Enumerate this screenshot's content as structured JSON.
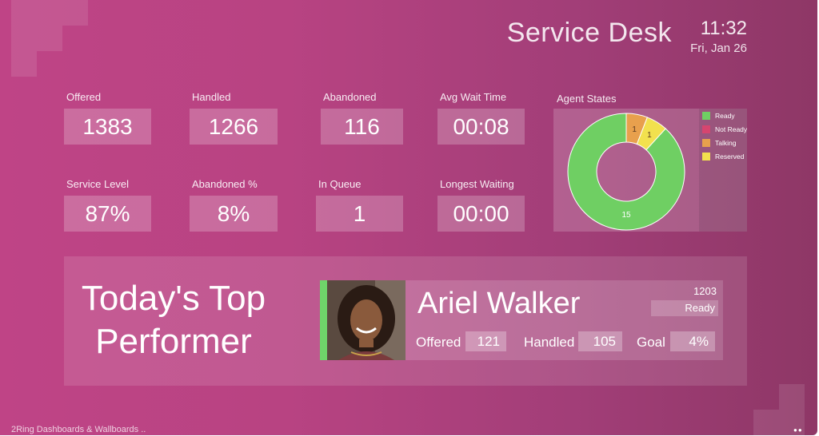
{
  "header": {
    "title": "Service Desk",
    "time": "11:32",
    "date": "Fri, Jan 26"
  },
  "metrics": [
    {
      "label": "Offered",
      "value": "1383"
    },
    {
      "label": "Handled",
      "value": "1266"
    },
    {
      "label": "Abandoned",
      "value": "116"
    },
    {
      "label": "Avg Wait Time",
      "value": "00:08"
    },
    {
      "label": "Service Level",
      "value": "87%"
    },
    {
      "label": "Abandoned %",
      "value": "8%"
    },
    {
      "label": "In Queue",
      "value": "1"
    },
    {
      "label": "Longest Waiting",
      "value": "00:00"
    }
  ],
  "agent_states": {
    "title": "Agent States",
    "legend": [
      {
        "name": "Ready",
        "color": "#6fcf63"
      },
      {
        "name": "Not Ready",
        "color": "#d6456f"
      },
      {
        "name": "Talking",
        "color": "#e8a04d"
      },
      {
        "name": "Reserved",
        "color": "#f2e14e"
      }
    ]
  },
  "chart_data": {
    "type": "pie",
    "title": "Agent States",
    "categories": [
      "Ready",
      "Not Ready",
      "Talking",
      "Reserved"
    ],
    "values": [
      15,
      0,
      1,
      1
    ],
    "colors": [
      "#6fcf63",
      "#d6456f",
      "#e8a04d",
      "#f2e14e"
    ],
    "labels": [
      "15",
      "",
      "1",
      "1"
    ],
    "legend": "right"
  },
  "top_performer": {
    "title_line1": "Today's Top",
    "title_line2": "Performer",
    "name": "Ariel Walker",
    "extension": "1203",
    "status": "Ready",
    "offered_label": "Offered",
    "offered_value": "121",
    "handled_label": "Handled",
    "handled_value": "105",
    "goal_label": "Goal",
    "goal_value": "4%",
    "accent": "#6fd36a"
  },
  "footer": {
    "text": "2Ring Dashboards & Wallboards ..",
    "dots": "●●"
  }
}
